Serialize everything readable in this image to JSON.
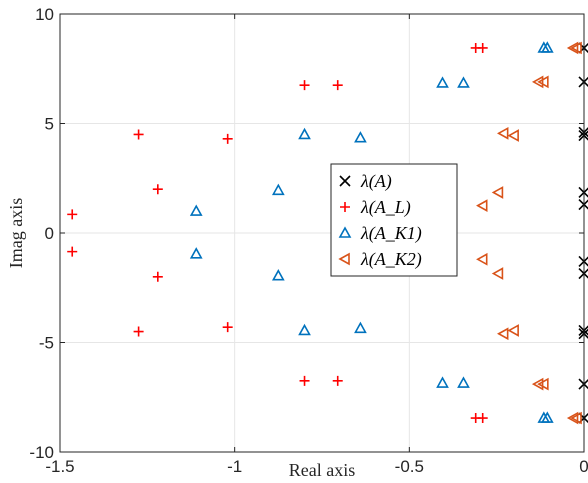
{
  "chart_data": {
    "type": "scatter",
    "xlabel": "Real axis",
    "ylabel": "Imag axis",
    "xlim": [
      -1.5,
      0
    ],
    "ylim": [
      -10,
      10
    ],
    "xticks": [
      -1.5,
      -1,
      -0.5,
      0
    ],
    "yticks": [
      -10,
      -5,
      0,
      5,
      10
    ],
    "xtick_labels": [
      "-1.5",
      "-1",
      "-0.5",
      "0"
    ],
    "ytick_labels": [
      "-10",
      "-5",
      "0",
      "5",
      "10"
    ],
    "grid": true,
    "legend_position": "center",
    "series": [
      {
        "name": "λ(A)",
        "marker": "x",
        "color": "#000000",
        "points": [
          [
            0,
            8.45
          ],
          [
            0,
            6.9
          ],
          [
            0,
            4.6
          ],
          [
            0,
            4.45
          ],
          [
            0,
            1.85
          ],
          [
            0,
            1.3
          ],
          [
            0,
            -1.3
          ],
          [
            0,
            -1.85
          ],
          [
            0,
            -4.45
          ],
          [
            0,
            -4.6
          ],
          [
            0,
            -6.9
          ],
          [
            0,
            -8.45
          ]
        ]
      },
      {
        "name": "λ(A_L)",
        "marker": "+",
        "color": "#ff0000",
        "points": [
          [
            -1.465,
            0.85
          ],
          [
            -1.465,
            -0.85
          ],
          [
            -1.275,
            4.5
          ],
          [
            -1.275,
            -4.5
          ],
          [
            -1.22,
            2.0
          ],
          [
            -1.22,
            -2.0
          ],
          [
            -1.02,
            4.3
          ],
          [
            -1.02,
            -4.3
          ],
          [
            -0.8,
            6.75
          ],
          [
            -0.8,
            -6.75
          ],
          [
            -0.705,
            6.75
          ],
          [
            -0.705,
            -6.75
          ],
          [
            -0.31,
            8.45
          ],
          [
            -0.29,
            8.45
          ],
          [
            -0.31,
            -8.45
          ],
          [
            -0.29,
            -8.45
          ]
        ]
      },
      {
        "name": "λ(A_K1)",
        "marker": "triangle-up",
        "color": "#0072bd",
        "points": [
          [
            -1.11,
            1.0
          ],
          [
            -1.11,
            -0.95
          ],
          [
            -0.875,
            1.95
          ],
          [
            -0.875,
            -1.95
          ],
          [
            -0.8,
            4.5
          ],
          [
            -0.8,
            -4.45
          ],
          [
            -0.64,
            4.35
          ],
          [
            -0.64,
            -4.35
          ],
          [
            -0.405,
            6.85
          ],
          [
            -0.405,
            -6.85
          ],
          [
            -0.345,
            6.85
          ],
          [
            -0.345,
            -6.85
          ],
          [
            -0.115,
            8.45
          ],
          [
            -0.105,
            8.45
          ],
          [
            -0.115,
            -8.45
          ],
          [
            -0.105,
            -8.45
          ]
        ]
      },
      {
        "name": "λ(A_K2)",
        "marker": "triangle-left",
        "color": "#d95319",
        "points": [
          [
            -0.29,
            1.25
          ],
          [
            -0.29,
            -1.2
          ],
          [
            -0.245,
            1.85
          ],
          [
            -0.245,
            -1.85
          ],
          [
            -0.23,
            4.55
          ],
          [
            -0.23,
            -4.6
          ],
          [
            -0.2,
            4.45
          ],
          [
            -0.2,
            -4.45
          ],
          [
            -0.13,
            6.9
          ],
          [
            -0.13,
            -6.9
          ],
          [
            -0.115,
            6.9
          ],
          [
            -0.115,
            -6.9
          ],
          [
            -0.03,
            8.45
          ],
          [
            -0.02,
            8.45
          ],
          [
            -0.03,
            -8.45
          ],
          [
            -0.02,
            -8.45
          ]
        ]
      }
    ]
  }
}
